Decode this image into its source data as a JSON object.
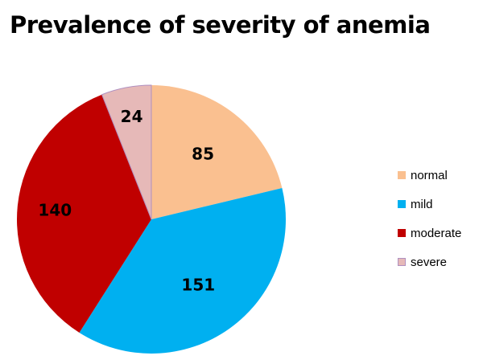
{
  "chart_data": {
    "type": "pie",
    "title": "Prevalence of severity of anemia",
    "categories": [
      "normal",
      "mild",
      "moderate",
      "severe"
    ],
    "values": [
      85,
      151,
      140,
      24
    ],
    "colors": [
      "#FAC090",
      "#00B0F0",
      "#C00000",
      "#E6B9B8"
    ],
    "data_labels": [
      "85",
      "151",
      "140",
      "24"
    ],
    "legend_position": "right",
    "start_angle": "12 o'clock",
    "direction": "clockwise"
  }
}
